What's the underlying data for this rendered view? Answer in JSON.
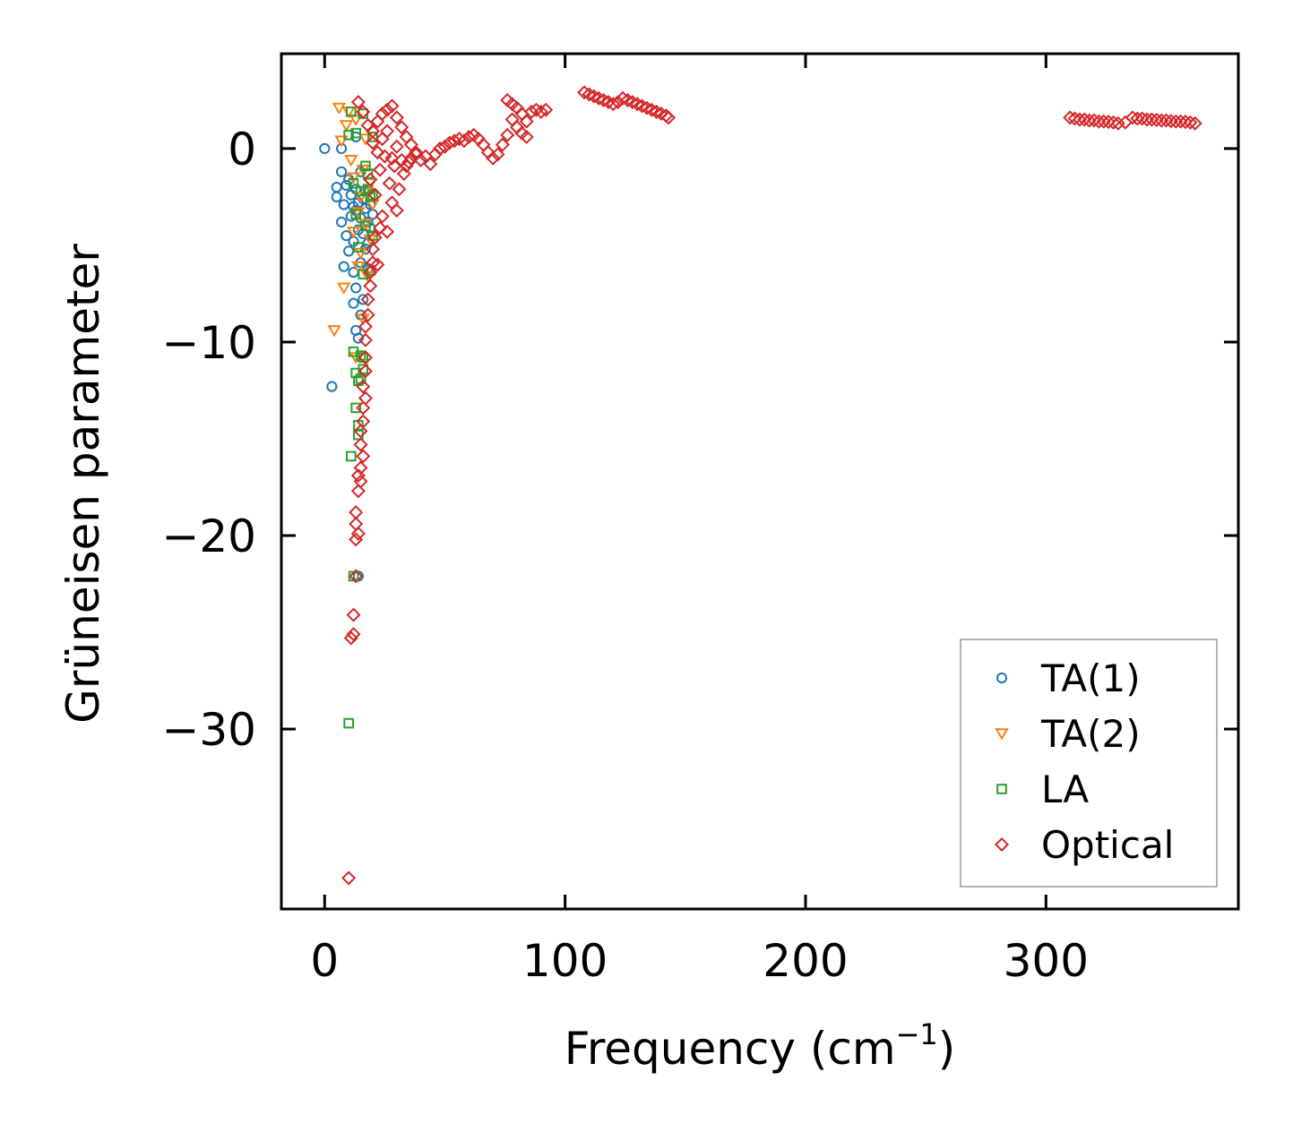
{
  "chart_data": {
    "type": "scatter",
    "title": "",
    "xlabel": "Frequency (cm",
    "xlabel_sup": "−1",
    "xlabel_close": ")",
    "ylabel": "Grüneisen parameter",
    "xlim": [
      -18,
      380
    ],
    "ylim": [
      -39.3,
      4.9
    ],
    "xticks": [
      0,
      100,
      200,
      300
    ],
    "xtick_labels": [
      "0",
      "100",
      "200",
      "300"
    ],
    "yticks": [
      0,
      -10,
      -20,
      -30
    ],
    "ytick_labels": [
      "0",
      "−10",
      "−20",
      "−30"
    ],
    "legend_position": "lower-right",
    "series": [
      {
        "name": "TA(1)",
        "marker": "circle",
        "color": "#1f77b4",
        "points": [
          [
            0,
            0
          ],
          [
            3,
            -12.3
          ],
          [
            5,
            -2.5
          ],
          [
            5,
            -2
          ],
          [
            7,
            0
          ],
          [
            7,
            -1.2
          ],
          [
            7,
            -3.8
          ],
          [
            8,
            -6.1
          ],
          [
            8,
            -2.9
          ],
          [
            9,
            -1.9
          ],
          [
            9,
            -4.5
          ],
          [
            10,
            -5.3
          ],
          [
            10,
            -1.6
          ],
          [
            11,
            -2.4
          ],
          [
            11,
            -3.5
          ],
          [
            12,
            -8
          ],
          [
            12,
            -4.8
          ],
          [
            12,
            -6.4
          ],
          [
            13,
            -2.1
          ],
          [
            13,
            -3.2
          ],
          [
            13,
            -7.2
          ],
          [
            13,
            0.6
          ],
          [
            14,
            -2.8
          ],
          [
            14,
            -4.2
          ],
          [
            14,
            -9.8
          ],
          [
            15,
            -3.6
          ],
          [
            15,
            -5.9
          ],
          [
            15,
            -1.2
          ],
          [
            16,
            -2.6
          ],
          [
            16,
            -4.4
          ],
          [
            16,
            -7.8
          ],
          [
            17,
            -3.1
          ],
          [
            17,
            -5.2
          ],
          [
            17,
            -2.2
          ],
          [
            18,
            -3.8
          ],
          [
            18,
            -4.9
          ],
          [
            18,
            -6.2
          ],
          [
            19,
            -2.9
          ],
          [
            19,
            -4.1
          ],
          [
            20,
            -3.4
          ],
          [
            14,
            -22.1
          ],
          [
            12,
            -3
          ],
          [
            15,
            -8.6
          ],
          [
            13,
            -9.4
          ]
        ]
      },
      {
        "name": "TA(2)",
        "marker": "triangle-down",
        "color": "#ff7f0e",
        "points": [
          [
            4,
            -9.4
          ],
          [
            6,
            2.1
          ],
          [
            7,
            0.4
          ],
          [
            8,
            -7.2
          ],
          [
            9,
            1.2
          ],
          [
            10,
            1.9
          ],
          [
            11,
            -0.6
          ],
          [
            12,
            -1.5
          ],
          [
            12,
            -4.3
          ],
          [
            13,
            1.5
          ],
          [
            14,
            -3.3
          ],
          [
            14,
            -6.1
          ],
          [
            15,
            -2.5
          ],
          [
            15,
            -5.4
          ],
          [
            16,
            -1.1
          ],
          [
            16,
            -8.8
          ],
          [
            17,
            -3.9
          ],
          [
            17,
            0.5
          ],
          [
            18,
            -2.3
          ],
          [
            18,
            -6.6
          ],
          [
            19,
            -4.7
          ],
          [
            19,
            -1.8
          ],
          [
            20,
            -2.9
          ],
          [
            13,
            -10.8
          ]
        ]
      },
      {
        "name": "LA",
        "marker": "square",
        "color": "#2ca02c",
        "points": [
          [
            10,
            -29.7
          ],
          [
            11,
            -15.9
          ],
          [
            12,
            -22.1
          ],
          [
            12,
            -10.5
          ],
          [
            13,
            -13.4
          ],
          [
            13,
            -11.6
          ],
          [
            14,
            -14.3
          ],
          [
            14,
            -12
          ],
          [
            14,
            -14.8
          ],
          [
            15,
            -11.9
          ],
          [
            15,
            -10.7
          ],
          [
            16,
            -10.8
          ],
          [
            16,
            -11.4
          ],
          [
            10,
            0.7
          ],
          [
            11,
            1.9
          ],
          [
            12,
            -1.8
          ],
          [
            13,
            -3.4
          ],
          [
            13,
            0.8
          ],
          [
            14,
            -5.1
          ],
          [
            15,
            -2.2
          ],
          [
            16,
            1.8
          ],
          [
            16,
            -6.5
          ],
          [
            17,
            -0.9
          ],
          [
            17,
            -4
          ],
          [
            18,
            -2.1
          ],
          [
            18,
            -1.3
          ],
          [
            19,
            -6.3
          ],
          [
            19,
            -2.5
          ],
          [
            20,
            0.6
          ],
          [
            20,
            -4.5
          ],
          [
            20,
            -2.4
          ]
        ]
      },
      {
        "name": "Optical",
        "marker": "diamond",
        "color": "#d62728",
        "points": [
          [
            10,
            -37.7
          ],
          [
            11,
            -25.3
          ],
          [
            12,
            -25.1
          ],
          [
            12,
            -24.1
          ],
          [
            13,
            -22.1
          ],
          [
            13,
            -20.2
          ],
          [
            14,
            -19.9
          ],
          [
            13,
            -19.4
          ],
          [
            13,
            -18.8
          ],
          [
            14,
            -17.7
          ],
          [
            14,
            -16.9
          ],
          [
            15,
            -17.2
          ],
          [
            15,
            -16.5
          ],
          [
            16,
            -15.9
          ],
          [
            15,
            -15.3
          ],
          [
            15,
            -14.6
          ],
          [
            16,
            -14.1
          ],
          [
            16,
            -13.4
          ],
          [
            17,
            -12.9
          ],
          [
            16,
            -12.3
          ],
          [
            17,
            -11.5
          ],
          [
            17,
            -10.8
          ],
          [
            17,
            -9.9
          ],
          [
            17,
            -9.2
          ],
          [
            18,
            -8.6
          ],
          [
            18,
            -7.8
          ],
          [
            19,
            -7.1
          ],
          [
            19,
            -6.4
          ],
          [
            20,
            -5.9
          ],
          [
            20,
            -5.2
          ],
          [
            21,
            -4.6
          ],
          [
            22,
            -6
          ],
          [
            23,
            -4.1
          ],
          [
            24,
            -3.5
          ],
          [
            26,
            -4.3
          ],
          [
            28,
            -2.8
          ],
          [
            30,
            -3.2
          ],
          [
            14,
            2.4
          ],
          [
            16,
            1.9
          ],
          [
            18,
            1.2
          ],
          [
            20,
            0.9
          ],
          [
            22,
            1.4
          ],
          [
            24,
            1.8
          ],
          [
            26,
            2
          ],
          [
            28,
            2.2
          ],
          [
            30,
            1.6
          ],
          [
            32,
            1.1
          ],
          [
            34,
            0.6
          ],
          [
            36,
            0.2
          ],
          [
            38,
            -0.3
          ],
          [
            40,
            -0.6
          ],
          [
            42,
            -0.4
          ],
          [
            44,
            -0.8
          ],
          [
            46,
            -0.3
          ],
          [
            48,
            0
          ],
          [
            50,
            0.1
          ],
          [
            52,
            0.3
          ],
          [
            54,
            0.4
          ],
          [
            56,
            0.5
          ],
          [
            58,
            0.4
          ],
          [
            60,
            0.6
          ],
          [
            62,
            0.7
          ],
          [
            64,
            0.5
          ],
          [
            66,
            0.2
          ],
          [
            68,
            -0.2
          ],
          [
            70,
            -0.5
          ],
          [
            72,
            -0.3
          ],
          [
            74,
            0.2
          ],
          [
            76,
            0.7
          ],
          [
            78,
            1.5
          ],
          [
            80,
            2.1
          ],
          [
            82,
            1.8
          ],
          [
            84,
            1.4
          ],
          [
            86,
            1.9
          ],
          [
            88,
            2
          ],
          [
            90,
            1.9
          ],
          [
            92,
            2
          ],
          [
            76,
            2.5
          ],
          [
            78,
            2.3
          ],
          [
            80,
            1.1
          ],
          [
            82,
            0.8
          ],
          [
            84,
            0.6
          ],
          [
            19,
            -1.6
          ],
          [
            21,
            -2.4
          ],
          [
            23,
            -1.1
          ],
          [
            25,
            -0.4
          ],
          [
            27,
            -1.8
          ],
          [
            29,
            -0.9
          ],
          [
            31,
            -2.1
          ],
          [
            33,
            -1.3
          ],
          [
            35,
            -0.7
          ],
          [
            20,
            0.3
          ],
          [
            22,
            -0.2
          ],
          [
            24,
            0.5
          ],
          [
            26,
            0.9
          ],
          [
            28,
            -0.5
          ],
          [
            30,
            0.1
          ],
          [
            32,
            -0.6
          ],
          [
            34,
            -0.9
          ],
          [
            36,
            -0.5
          ],
          [
            38,
            -0.2
          ],
          [
            108,
            2.9
          ],
          [
            110,
            2.8
          ],
          [
            112,
            2.7
          ],
          [
            114,
            2.6
          ],
          [
            116,
            2.5
          ],
          [
            118,
            2.4
          ],
          [
            120,
            2.3
          ],
          [
            122,
            2.4
          ],
          [
            124,
            2.6
          ],
          [
            126,
            2.5
          ],
          [
            128,
            2.4
          ],
          [
            130,
            2.3
          ],
          [
            132,
            2.2
          ],
          [
            134,
            2.1
          ],
          [
            136,
            2
          ],
          [
            138,
            1.9
          ],
          [
            140,
            1.8
          ],
          [
            142,
            1.7
          ],
          [
            143,
            1.6
          ],
          [
            310,
            1.6
          ],
          [
            312,
            1.55
          ],
          [
            314,
            1.5
          ],
          [
            316,
            1.5
          ],
          [
            318,
            1.45
          ],
          [
            320,
            1.45
          ],
          [
            322,
            1.4
          ],
          [
            324,
            1.4
          ],
          [
            326,
            1.38
          ],
          [
            328,
            1.35
          ],
          [
            330,
            1.3
          ],
          [
            333,
            1.35
          ],
          [
            336,
            1.6
          ],
          [
            338,
            1.55
          ],
          [
            340,
            1.55
          ],
          [
            342,
            1.5
          ],
          [
            344,
            1.5
          ],
          [
            346,
            1.48
          ],
          [
            348,
            1.45
          ],
          [
            350,
            1.45
          ],
          [
            352,
            1.42
          ],
          [
            354,
            1.4
          ],
          [
            356,
            1.4
          ],
          [
            358,
            1.38
          ],
          [
            360,
            1.35
          ],
          [
            362,
            1.3
          ]
        ]
      }
    ]
  }
}
